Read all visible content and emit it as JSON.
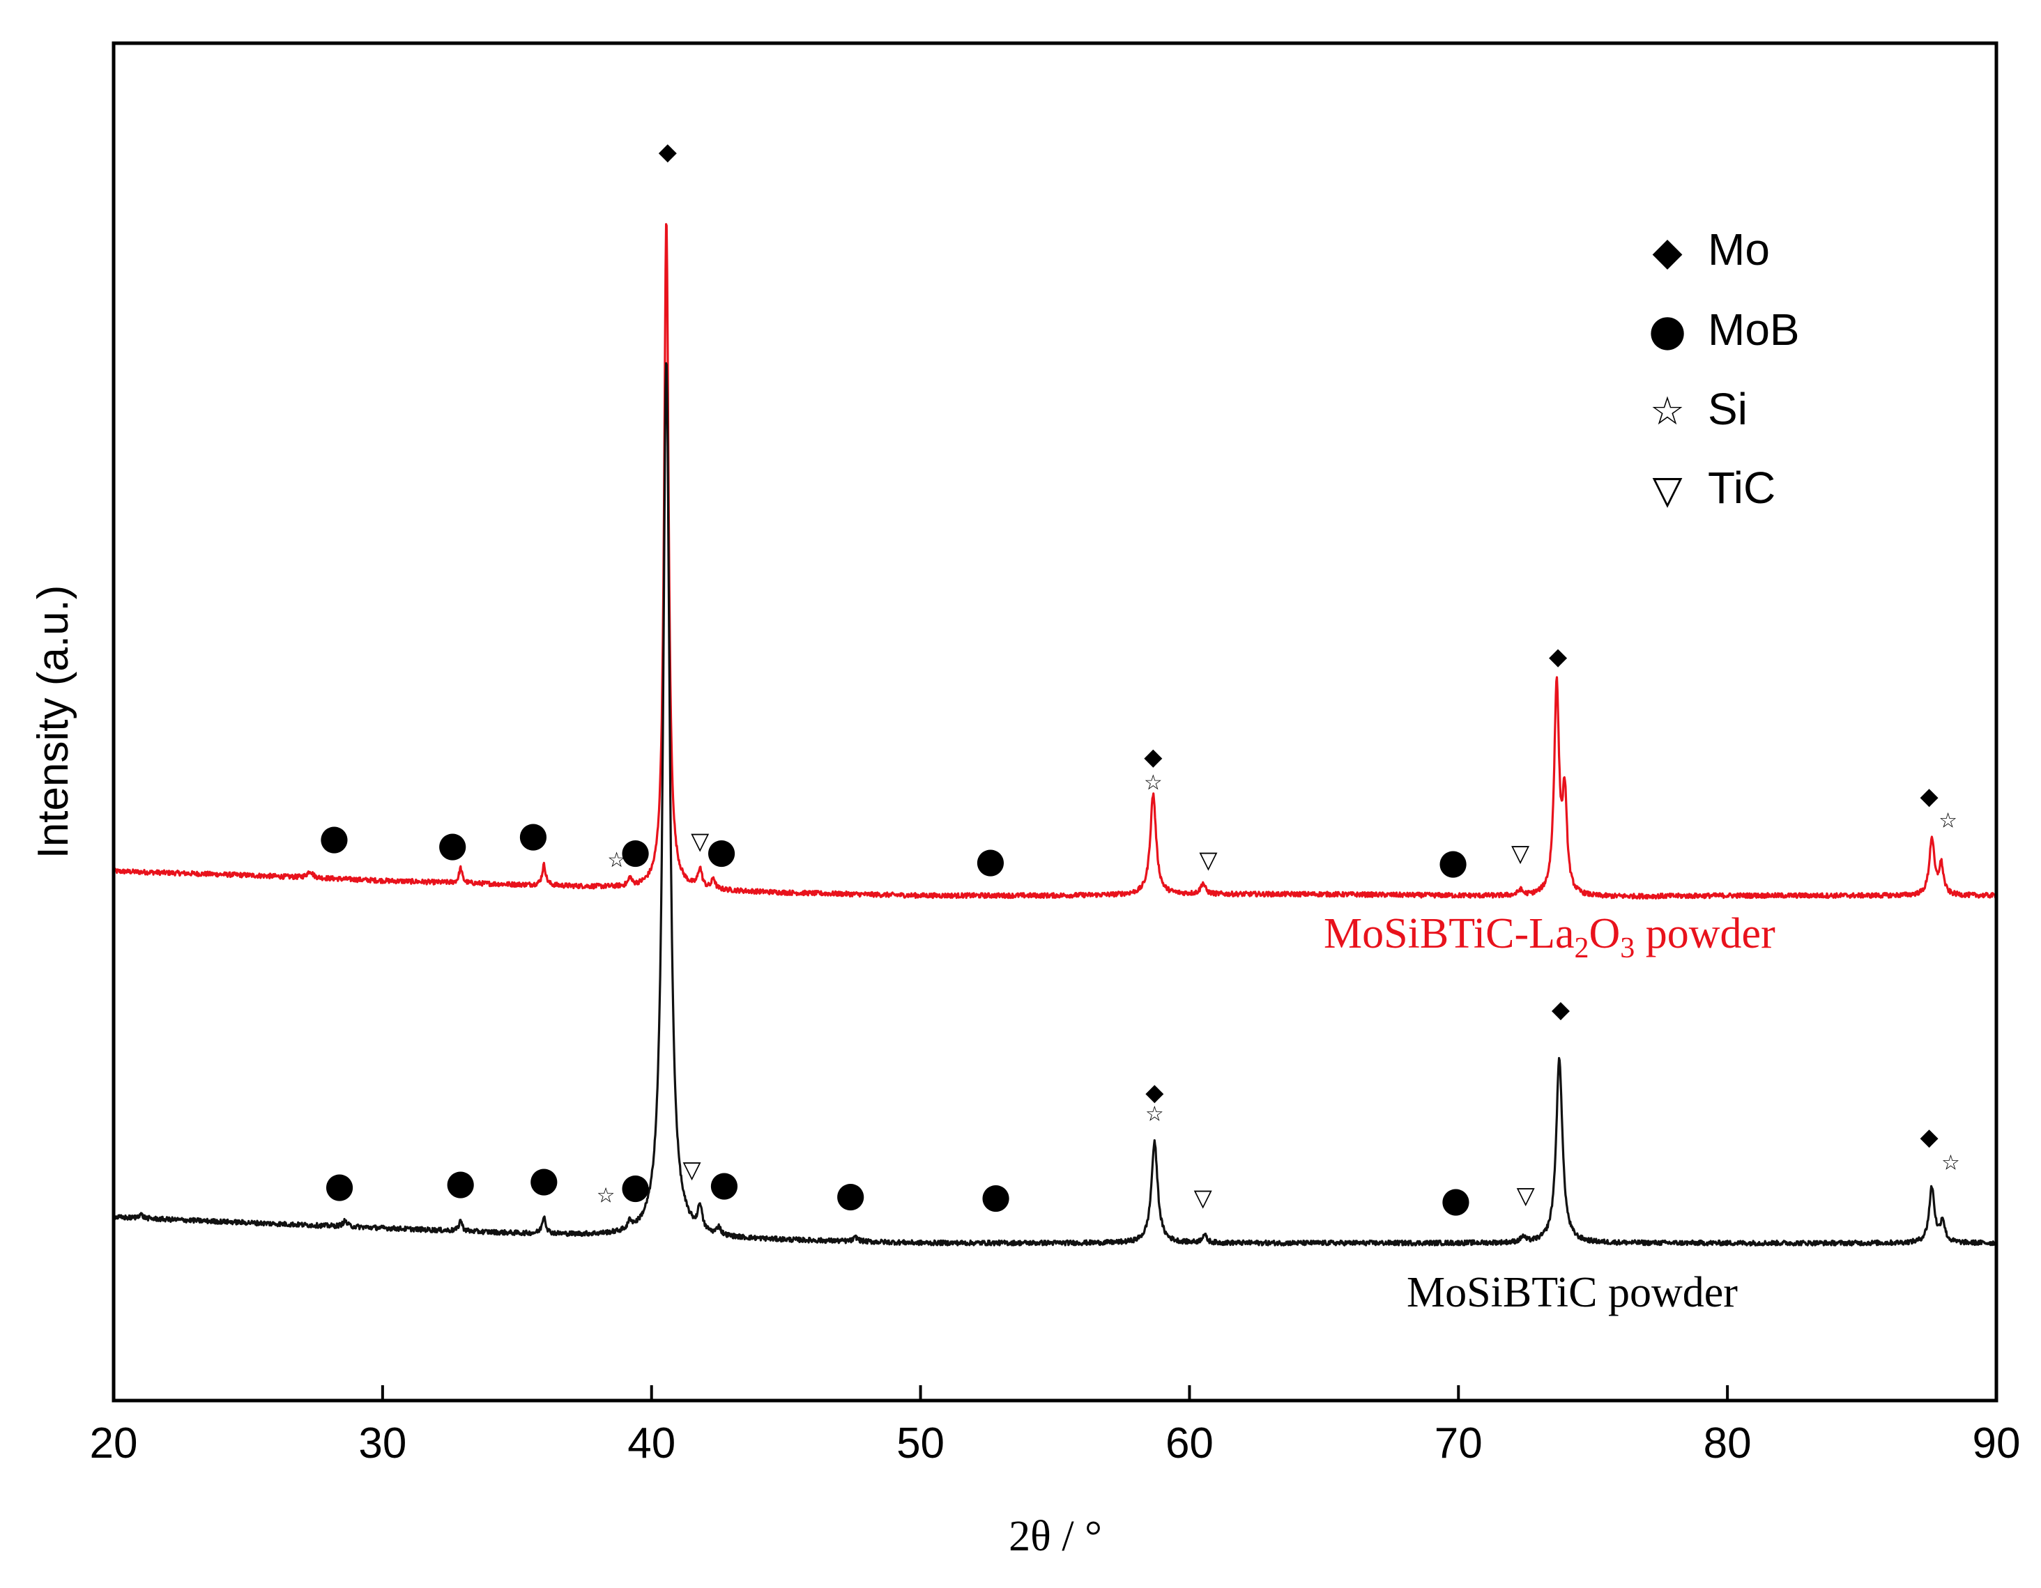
{
  "chart_data": {
    "type": "line",
    "title": "",
    "xlabel": "2θ / °",
    "ylabel": "Intensity (a.u.)",
    "xlim": [
      20,
      90
    ],
    "ylim": [
      0,
      100
    ],
    "xticks": [
      20,
      30,
      40,
      50,
      60,
      70,
      80,
      90
    ],
    "yticks_shown": false,
    "grid": false,
    "legend": {
      "position": "top-right",
      "entries": [
        {
          "symbol": "diamond",
          "glyph": "◆",
          "label": "Mo"
        },
        {
          "symbol": "circle",
          "glyph": "●",
          "label": "MoB"
        },
        {
          "symbol": "star",
          "glyph": "☆",
          "label": "Si"
        },
        {
          "symbol": "triangle-down",
          "glyph": "▽",
          "label": "TiC"
        }
      ]
    },
    "series": [
      {
        "name": "MoSiBTiC-La2O3 powder",
        "label_main": "MoSiBTiC-La",
        "label_sub1": "2",
        "label_mid": "O",
        "label_sub2": "3",
        "label_tail": " powder",
        "color": "#e8121c",
        "baseline": [
          [
            20,
            39.0
          ],
          [
            25,
            38.7
          ],
          [
            30,
            38.3
          ],
          [
            35,
            38.0
          ],
          [
            40,
            37.7
          ],
          [
            45,
            37.4
          ],
          [
            50,
            37.2
          ],
          [
            55,
            37.2
          ],
          [
            60,
            37.3
          ],
          [
            65,
            37.3
          ],
          [
            70,
            37.2
          ],
          [
            75,
            37.1
          ],
          [
            80,
            37.2
          ],
          [
            85,
            37.2
          ],
          [
            90,
            37.2
          ]
        ],
        "peaks": [
          {
            "x": 27.3,
            "h": 0.5,
            "w": 0.12
          },
          {
            "x": 32.9,
            "h": 1.1,
            "w": 0.07
          },
          {
            "x": 36.0,
            "h": 1.5,
            "w": 0.08
          },
          {
            "x": 39.2,
            "h": 0.6,
            "w": 0.07
          },
          {
            "x": 40.55,
            "h": 49.5,
            "w": 0.1
          },
          {
            "x": 41.8,
            "h": 1.4,
            "w": 0.09
          },
          {
            "x": 42.3,
            "h": 0.8,
            "w": 0.07
          },
          {
            "x": 58.65,
            "h": 7.4,
            "w": 0.13
          },
          {
            "x": 60.5,
            "h": 0.8,
            "w": 0.1
          },
          {
            "x": 72.3,
            "h": 0.4,
            "w": 0.1
          },
          {
            "x": 73.65,
            "h": 15.4,
            "w": 0.11
          },
          {
            "x": 73.95,
            "h": 7.0,
            "w": 0.1
          },
          {
            "x": 87.6,
            "h": 4.2,
            "w": 0.11
          },
          {
            "x": 87.95,
            "h": 2.2,
            "w": 0.1
          }
        ],
        "markers": [
          {
            "x": 28.2,
            "y": 41.5,
            "phase": "MoB"
          },
          {
            "x": 32.6,
            "y": 41.0,
            "phase": "MoB"
          },
          {
            "x": 35.6,
            "y": 41.7,
            "phase": "MoB"
          },
          {
            "x": 38.7,
            "y": 39.8,
            "phase": "Si"
          },
          {
            "x": 39.4,
            "y": 40.5,
            "phase": "MoB"
          },
          {
            "x": 40.6,
            "y": 92.0,
            "phase": "Mo"
          },
          {
            "x": 41.8,
            "y": 41.2,
            "phase": "TiC"
          },
          {
            "x": 42.6,
            "y": 40.5,
            "phase": "MoB"
          },
          {
            "x": 52.6,
            "y": 39.8,
            "phase": "MoB"
          },
          {
            "x": 58.65,
            "y": 47.4,
            "phase": "Mo"
          },
          {
            "x": 58.65,
            "y": 45.5,
            "phase": "Si"
          },
          {
            "x": 60.7,
            "y": 39.8,
            "phase": "TiC"
          },
          {
            "x": 69.8,
            "y": 39.7,
            "phase": "MoB"
          },
          {
            "x": 72.3,
            "y": 40.3,
            "phase": "TiC"
          },
          {
            "x": 73.7,
            "y": 54.8,
            "phase": "Mo"
          },
          {
            "x": 87.5,
            "y": 44.5,
            "phase": "Mo"
          },
          {
            "x": 88.2,
            "y": 42.7,
            "phase": "Si"
          }
        ]
      },
      {
        "name": "MoSiBTiC powder",
        "color": "#111111",
        "baseline": [
          [
            20,
            13.5
          ],
          [
            25,
            13.1
          ],
          [
            30,
            12.7
          ],
          [
            35,
            12.3
          ],
          [
            40,
            12.0
          ],
          [
            45,
            11.8
          ],
          [
            50,
            11.6
          ],
          [
            55,
            11.6
          ],
          [
            60,
            11.6
          ],
          [
            65,
            11.6
          ],
          [
            70,
            11.6
          ],
          [
            75,
            11.6
          ],
          [
            80,
            11.6
          ],
          [
            85,
            11.6
          ],
          [
            90,
            11.6
          ]
        ],
        "peaks": [
          {
            "x": 21.0,
            "h": 0.3,
            "w": 0.1
          },
          {
            "x": 28.6,
            "h": 0.4,
            "w": 0.1
          },
          {
            "x": 32.9,
            "h": 0.8,
            "w": 0.07
          },
          {
            "x": 36.0,
            "h": 1.3,
            "w": 0.08
          },
          {
            "x": 39.2,
            "h": 0.6,
            "w": 0.08
          },
          {
            "x": 40.55,
            "h": 64.7,
            "w": 0.15
          },
          {
            "x": 41.8,
            "h": 1.8,
            "w": 0.09
          },
          {
            "x": 42.5,
            "h": 0.6,
            "w": 0.08
          },
          {
            "x": 47.6,
            "h": 0.3,
            "w": 0.1
          },
          {
            "x": 58.7,
            "h": 7.4,
            "w": 0.14
          },
          {
            "x": 60.55,
            "h": 0.6,
            "w": 0.1
          },
          {
            "x": 72.4,
            "h": 0.4,
            "w": 0.1
          },
          {
            "x": 73.75,
            "h": 13.6,
            "w": 0.14
          },
          {
            "x": 87.6,
            "h": 4.1,
            "w": 0.12
          },
          {
            "x": 88.0,
            "h": 1.6,
            "w": 0.1
          }
        ],
        "markers": [
          {
            "x": 28.4,
            "y": 15.9,
            "phase": "MoB"
          },
          {
            "x": 32.9,
            "y": 16.1,
            "phase": "MoB"
          },
          {
            "x": 36.0,
            "y": 16.3,
            "phase": "MoB"
          },
          {
            "x": 38.3,
            "y": 15.1,
            "phase": "Si"
          },
          {
            "x": 39.4,
            "y": 15.8,
            "phase": "MoB"
          },
          {
            "x": 41.5,
            "y": 17.0,
            "phase": "TiC"
          },
          {
            "x": 42.7,
            "y": 16.0,
            "phase": "MoB"
          },
          {
            "x": 47.4,
            "y": 15.2,
            "phase": "MoB"
          },
          {
            "x": 52.8,
            "y": 15.1,
            "phase": "MoB"
          },
          {
            "x": 58.7,
            "y": 22.7,
            "phase": "Mo"
          },
          {
            "x": 58.7,
            "y": 21.1,
            "phase": "Si"
          },
          {
            "x": 60.5,
            "y": 14.9,
            "phase": "TiC"
          },
          {
            "x": 69.9,
            "y": 14.8,
            "phase": "MoB"
          },
          {
            "x": 72.5,
            "y": 15.1,
            "phase": "TiC"
          },
          {
            "x": 73.8,
            "y": 28.8,
            "phase": "Mo"
          },
          {
            "x": 87.5,
            "y": 19.4,
            "phase": "Mo"
          },
          {
            "x": 88.3,
            "y": 17.5,
            "phase": "Si"
          }
        ]
      }
    ]
  }
}
